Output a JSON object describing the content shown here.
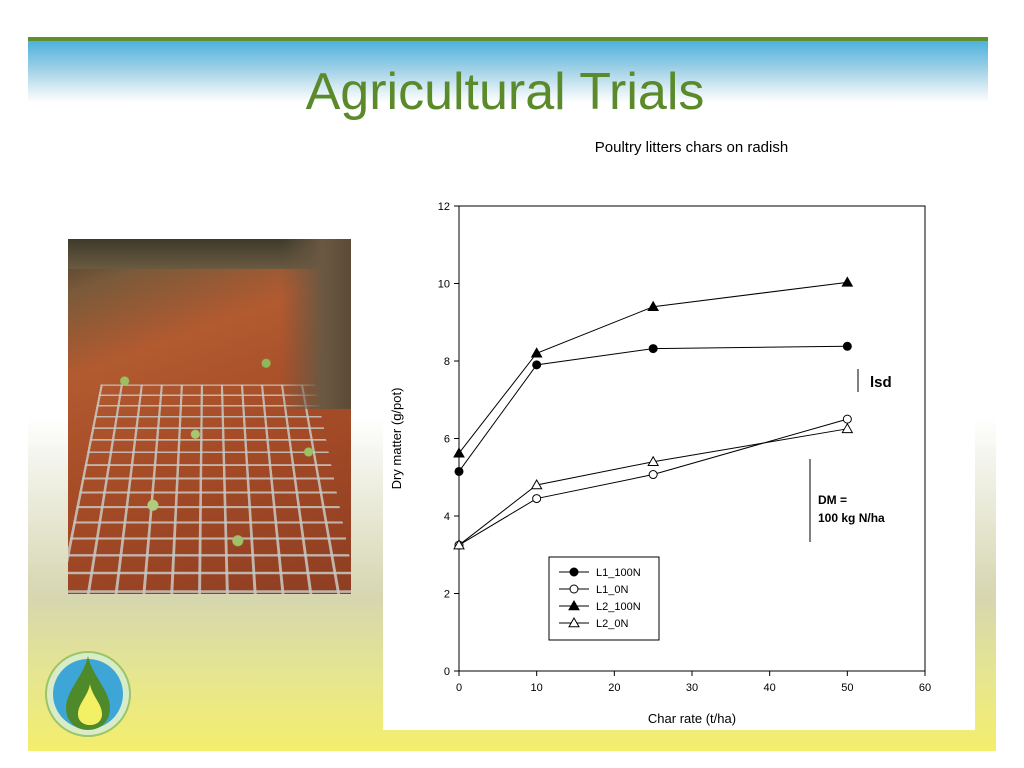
{
  "slide": {
    "title": "Agricultural Trials"
  },
  "icons": {
    "logo": "flame-drop-logo-icon",
    "photo": "seedling-tray-photo"
  },
  "colors": {
    "title": "#5a8a2a",
    "top_band": "#4db2dd",
    "accent_green": "#5f8f2e"
  },
  "chart_data": {
    "type": "line",
    "title": "Poultry litters chars on radish",
    "xlabel": "Char rate (t/ha)",
    "ylabel": "Dry matter (g/pot)",
    "xlim": [
      0,
      60
    ],
    "ylim": [
      0,
      12
    ],
    "xticks": [
      0,
      10,
      20,
      30,
      40,
      50,
      60
    ],
    "yticks": [
      0,
      2,
      4,
      6,
      8,
      10,
      12
    ],
    "grid": false,
    "legend_position": "bottom-center",
    "series": [
      {
        "name": "L1_100N",
        "marker": "filled-circle",
        "x": [
          0,
          10,
          25,
          50
        ],
        "y": [
          5.15,
          7.9,
          8.32,
          8.38
        ]
      },
      {
        "name": "L1_0N",
        "marker": "open-circle",
        "x": [
          0,
          10,
          25,
          50
        ],
        "y": [
          3.25,
          4.45,
          5.07,
          6.5
        ]
      },
      {
        "name": "L2_100N",
        "marker": "filled-triangle",
        "x": [
          0,
          10,
          25,
          50
        ],
        "y": [
          5.62,
          8.2,
          9.4,
          10.03
        ]
      },
      {
        "name": "L2_0N",
        "marker": "open-triangle",
        "x": [
          0,
          10,
          25,
          50
        ],
        "y": [
          3.25,
          4.8,
          5.4,
          6.25
        ]
      }
    ],
    "annotations": {
      "lsd_label": "lsd",
      "dm_line1": "DM =",
      "dm_line2": "100 kg N/ha"
    }
  }
}
